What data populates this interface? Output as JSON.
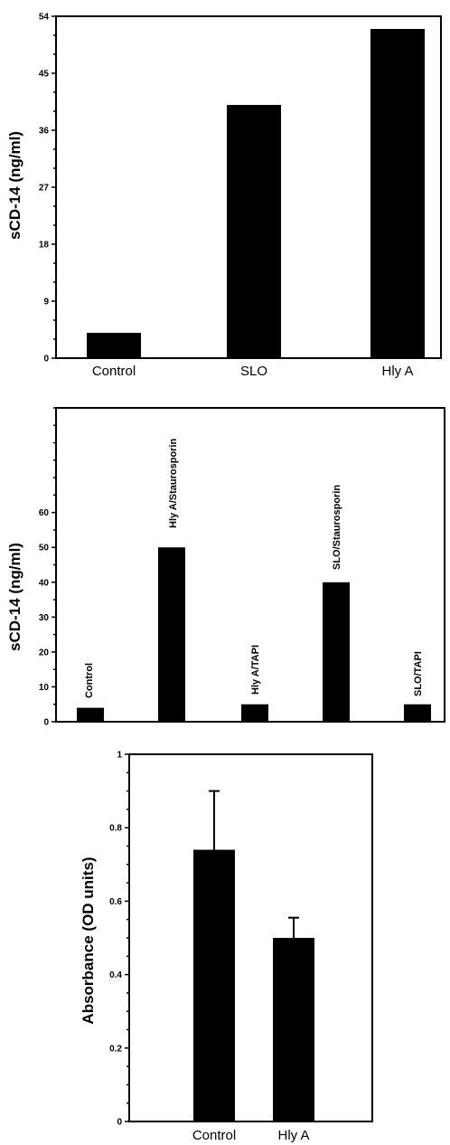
{
  "chart_data": [
    {
      "type": "bar",
      "ylabel": "sCD-14 (ng/ml)",
      "categories": [
        "Control",
        "SLO",
        "Hly A"
      ],
      "values": [
        4,
        40,
        52
      ],
      "yticks": [
        "0",
        "9",
        "18",
        "27",
        "36",
        "45",
        "54"
      ],
      "ylim": [
        0,
        54
      ],
      "grid": false
    },
    {
      "type": "bar",
      "ylabel": "sCD-14 (ng/ml)",
      "bar_labels": [
        "Control",
        "Hly A/Staurosporin",
        "Hly A/TAPI",
        "SLO/Staurosporin",
        "SLO/TAPI"
      ],
      "values": [
        4,
        50,
        5,
        40,
        5
      ],
      "yticks": [
        "0",
        "10",
        "20",
        "30",
        "40",
        "50",
        "60"
      ],
      "ylim": [
        0,
        90
      ],
      "grid": false
    },
    {
      "type": "bar",
      "ylabel": "Absorbance (OD units)",
      "categories": [
        "Control",
        "Hly A"
      ],
      "values": [
        0.74,
        0.5
      ],
      "errors": [
        0.16,
        0.055
      ],
      "yticks": [
        "0",
        "0.2",
        "0.4",
        "0.6",
        "0.8",
        "1"
      ],
      "ylim": [
        0,
        1
      ],
      "grid": false
    }
  ]
}
